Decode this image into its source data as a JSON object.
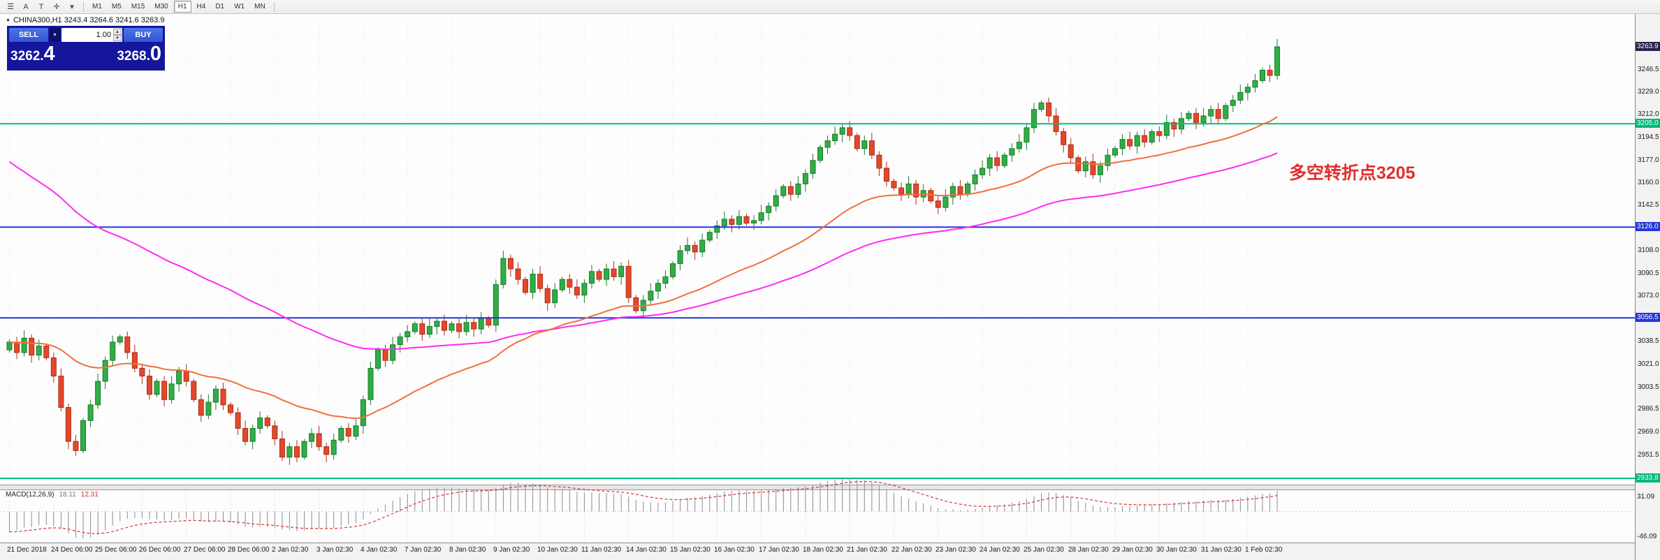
{
  "toolbar": {
    "icons": [
      {
        "name": "menu-icon",
        "glyph": "☰"
      },
      {
        "name": "text-tool-a-icon",
        "glyph": "A"
      },
      {
        "name": "text-tool-t-icon",
        "glyph": "T"
      },
      {
        "name": "crosshair-icon",
        "glyph": "✛"
      },
      {
        "name": "chevron-down-icon",
        "glyph": "▾"
      }
    ],
    "timeframes": [
      {
        "label": "M1",
        "active": false
      },
      {
        "label": "M5",
        "active": false
      },
      {
        "label": "M15",
        "active": false
      },
      {
        "label": "M30",
        "active": false
      },
      {
        "label": "H1",
        "active": true
      },
      {
        "label": "H4",
        "active": false
      },
      {
        "label": "D1",
        "active": false
      },
      {
        "label": "W1",
        "active": false
      },
      {
        "label": "MN",
        "active": false
      }
    ]
  },
  "chart": {
    "marker_glyph": "▲",
    "symbol_line": "CHINA300,H1  3243.4 3264.6 3241.6 3263.9",
    "annotation": {
      "text": "多空转折点3205",
      "color": "#e02e2e"
    },
    "colors": {
      "up": "#2fae44",
      "up_stroke": "#1d7a2e",
      "down": "#e5472b",
      "down_stroke": "#a93019",
      "ma_fast": "#f0703c",
      "ma_slow": "#ff2bf2",
      "grid": "#ececec",
      "hist": "#8c8c8c",
      "signal": "#e03030"
    }
  },
  "trade_panel": {
    "sell_label": "SELL",
    "buy_label": "BUY",
    "dropdown_glyph": "▼",
    "volume": "1.00",
    "spinner_up": "▲",
    "spinner_down": "▼",
    "sell_price_main": "3262.",
    "sell_price_big": "4",
    "buy_price_main": "3268.",
    "buy_price_big": "0"
  },
  "price_axis": {
    "labels": [
      3246.5,
      3229.0,
      3212.0,
      3194.5,
      3177.0,
      3160.0,
      3142.5,
      3108.0,
      3090.5,
      3073.0,
      3038.5,
      3021.0,
      3003.5,
      2986.5,
      2969.0,
      2951.5
    ],
    "flags": [
      {
        "value": "3263.9",
        "price": 3263.9,
        "bg": "#222448"
      },
      {
        "value": "3205.0",
        "price": 3205.0,
        "bg": "#00b87a"
      },
      {
        "value": "3126.0",
        "price": 3126.0,
        "bg": "#2337d8"
      },
      {
        "value": "3056.5",
        "price": 3056.5,
        "bg": "#2337d8"
      },
      {
        "value": "2933.8",
        "price": 2933.8,
        "bg": "#00b87a"
      }
    ]
  },
  "time_axis": {
    "labels": [
      "21 Dec 2018",
      "24 Dec 06:00",
      "25 Dec 06:00",
      "26 Dec 06:00",
      "27 Dec 06:00",
      "28 Dec 06:00",
      "2 Jan 02:30",
      "3 Jan 02:30",
      "4 Jan 02:30",
      "7 Jan 02:30",
      "8 Jan 02:30",
      "9 Jan 02:30",
      "10 Jan 02:30",
      "11 Jan 02:30",
      "14 Jan 02:30",
      "15 Jan 02:30",
      "16 Jan 02:30",
      "17 Jan 02:30",
      "18 Jan 02:30",
      "21 Jan 02:30",
      "22 Jan 02:30",
      "23 Jan 02:30",
      "24 Jan 02:30",
      "25 Jan 02:30",
      "28 Jan 02:30",
      "29 Jan 02:30",
      "30 Jan 02:30",
      "31 Jan 02:30",
      "1 Feb 02:30"
    ]
  },
  "macd": {
    "label": "MACD(12,26,9)",
    "value_macd": "18.11",
    "value_signal": "12.31",
    "axis_max": 31.09,
    "axis_min": -46.09
  },
  "chart_data": {
    "type": "candlestick",
    "symbol": "CHINA300",
    "timeframe": "H1",
    "ohlc_current": {
      "open": 3243.4,
      "high": 3264.6,
      "low": 3241.6,
      "close": 3263.9
    },
    "y_range": [
      2929,
      3289
    ],
    "candles_per_day": 6,
    "closes": [
      3038,
      3030,
      3041,
      3028,
      3035,
      3026,
      3012,
      2988,
      2962,
      2955,
      2978,
      2990,
      3008,
      3024,
      3038,
      3042,
      3030,
      3018,
      3012,
      2998,
      3008,
      2994,
      3006,
      3016,
      3008,
      2994,
      2982,
      2992,
      3002,
      2990,
      2984,
      2972,
      2962,
      2972,
      2980,
      2974,
      2964,
      2950,
      2958,
      2950,
      2962,
      2968,
      2958,
      2952,
      2963,
      2972,
      2966,
      2974,
      2994,
      3018,
      3032,
      3024,
      3036,
      3042,
      3046,
      3052,
      3044,
      3050,
      3054,
      3047,
      3052,
      3046,
      3053,
      3048,
      3056,
      3051,
      3082,
      3102,
      3094,
      3086,
      3076,
      3090,
      3079,
      3068,
      3078,
      3086,
      3080,
      3074,
      3083,
      3092,
      3086,
      3094,
      3088,
      3096,
      3072,
      3062,
      3070,
      3077,
      3083,
      3088,
      3098,
      3108,
      3112,
      3107,
      3116,
      3122,
      3127,
      3132,
      3128,
      3134,
      3129,
      3131,
      3137,
      3142,
      3150,
      3157,
      3151,
      3159,
      3167,
      3177,
      3187,
      3192,
      3197,
      3202,
      3196,
      3186,
      3192,
      3181,
      3171,
      3161,
      3156,
      3151,
      3159,
      3149,
      3154,
      3146,
      3141,
      3149,
      3157,
      3151,
      3159,
      3166,
      3171,
      3179,
      3173,
      3181,
      3186,
      3191,
      3202,
      3216,
      3221,
      3211,
      3199,
      3189,
      3179,
      3169,
      3176,
      3166,
      3173,
      3181,
      3186,
      3193,
      3188,
      3196,
      3191,
      3199,
      3196,
      3206,
      3201,
      3209,
      3213,
      3206,
      3211,
      3216,
      3209,
      3219,
      3223,
      3229,
      3233,
      3238,
      3246,
      3242,
      3263.9
    ],
    "levels": [
      {
        "price": 3205.0,
        "color": "#00c07a"
      },
      {
        "price": 3126.0,
        "color": "#2337d8"
      },
      {
        "price": 3056.5,
        "color": "#2337d8"
      },
      {
        "price": 2933.8,
        "color": "#00c07a"
      }
    ]
  }
}
